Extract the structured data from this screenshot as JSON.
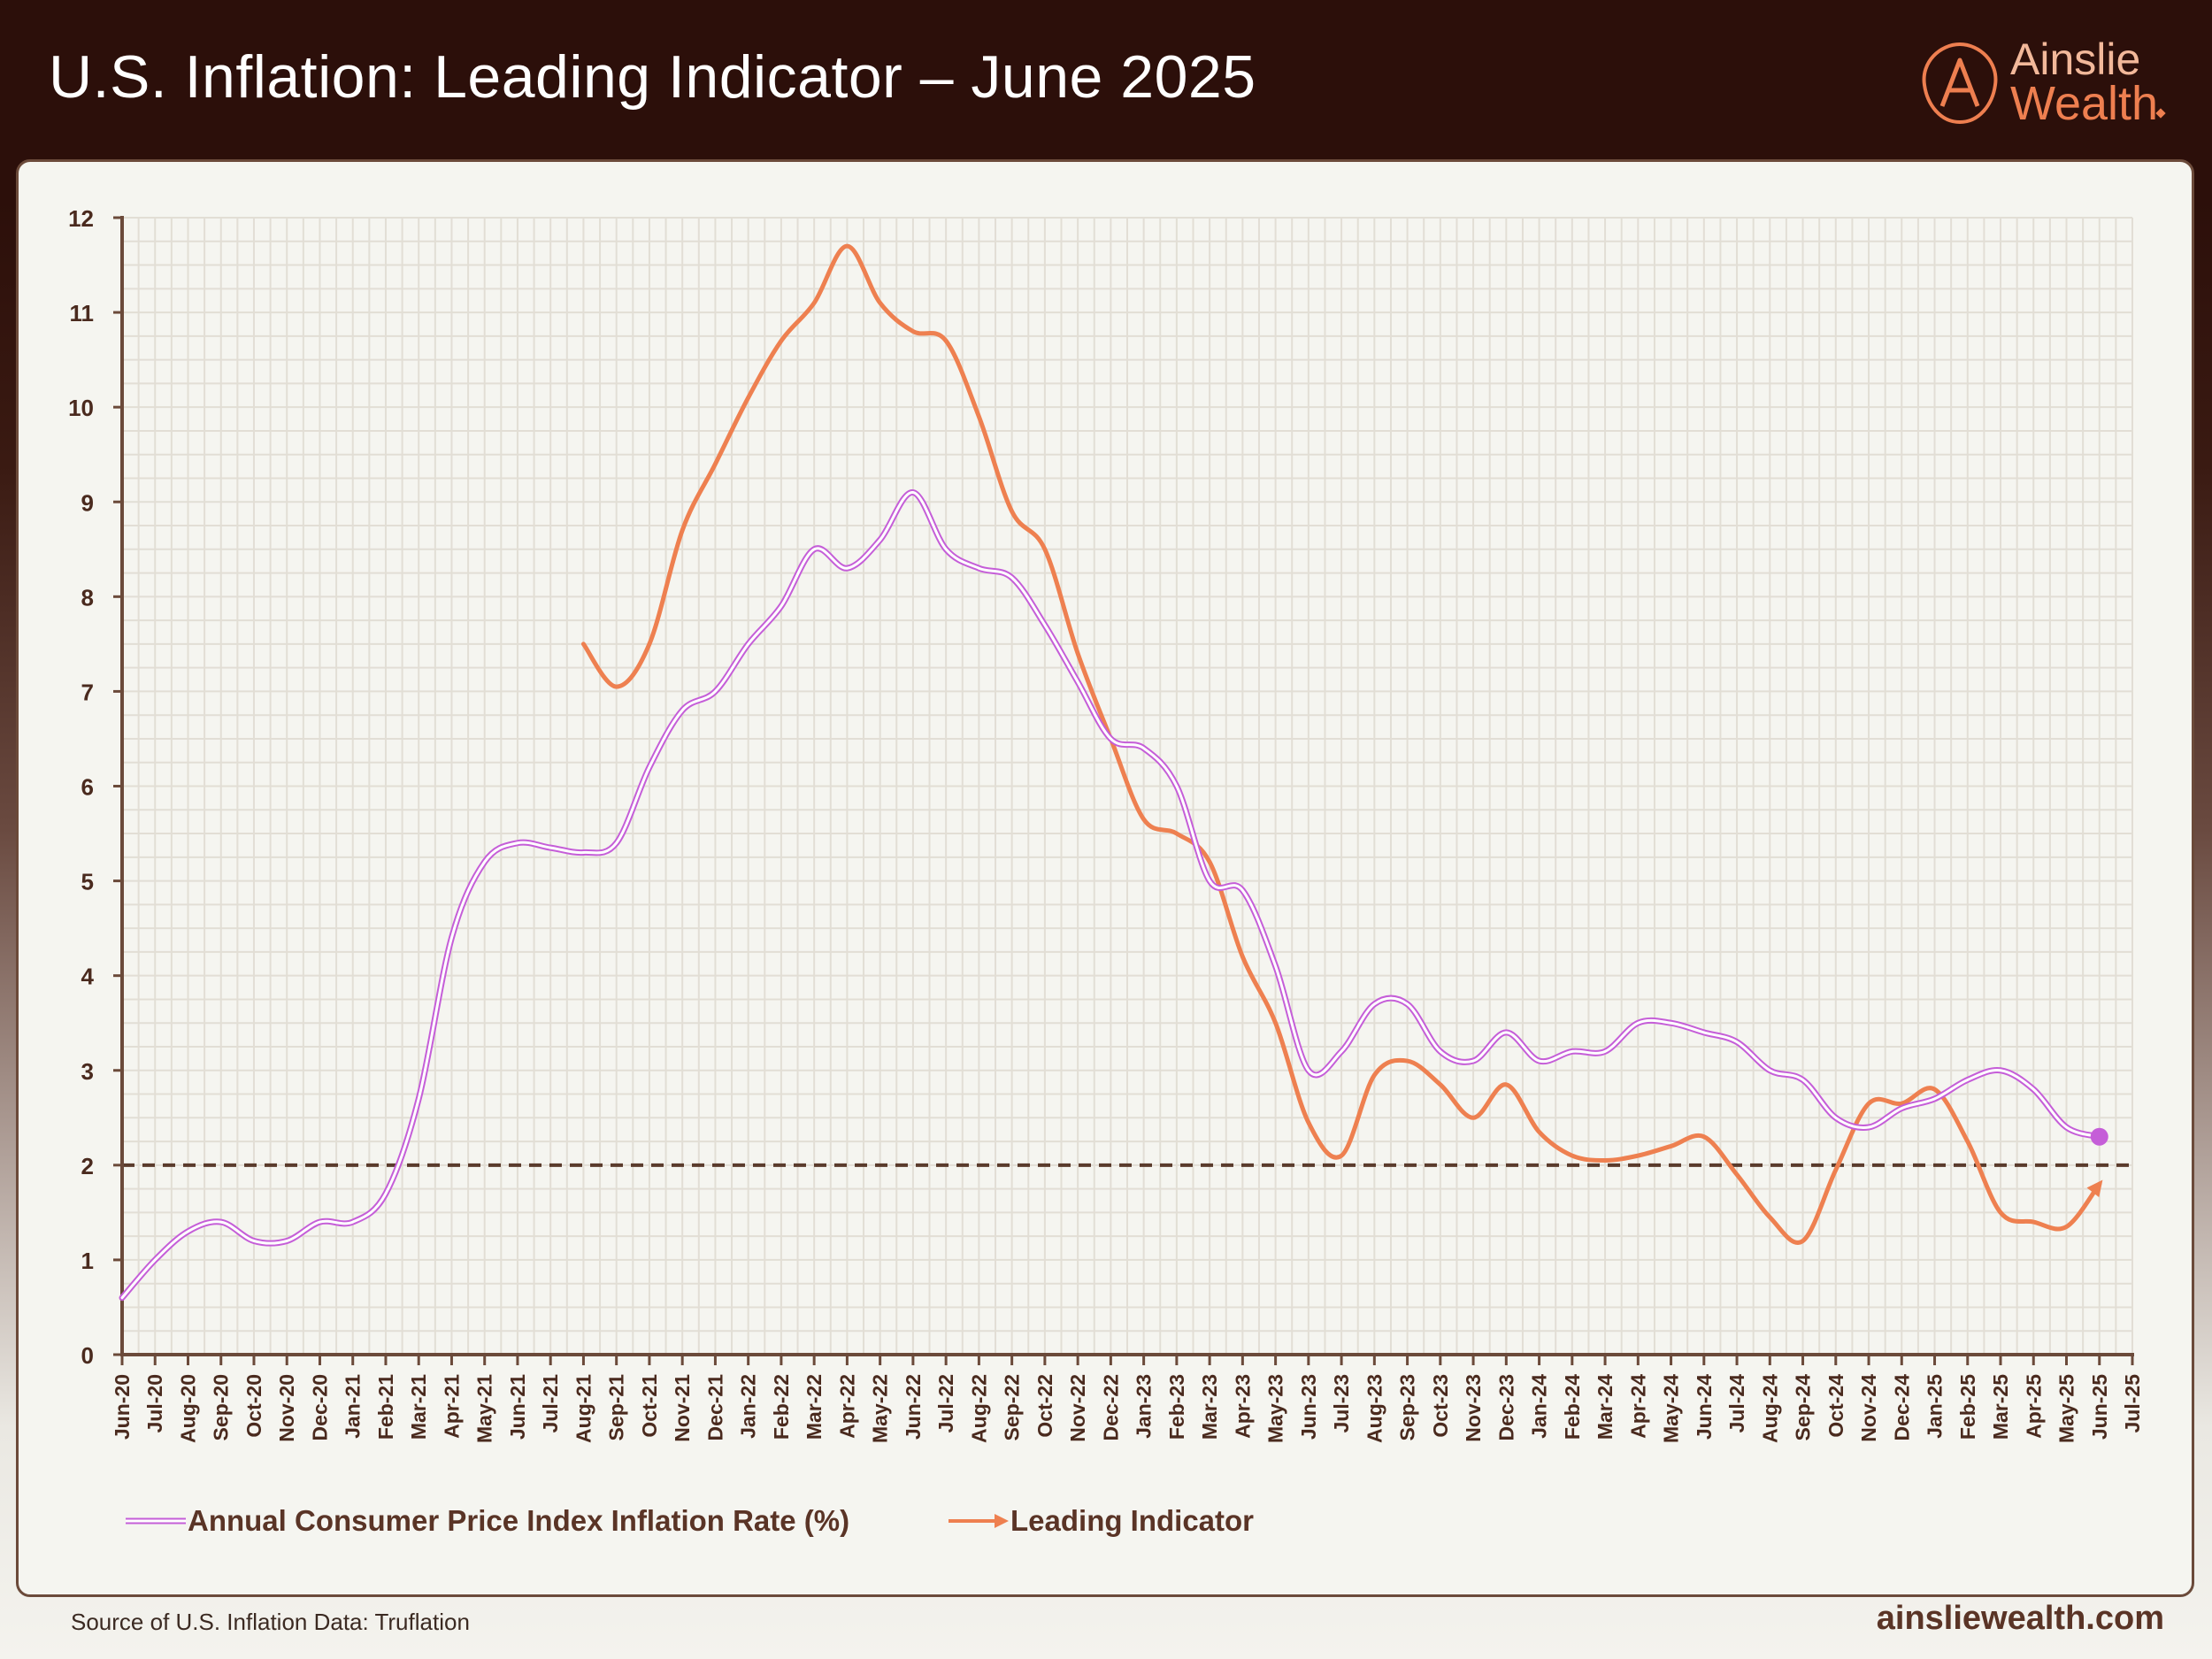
{
  "header": {
    "title": "U.S. Inflation: Leading Indicator – June 2025",
    "logo_line1": "Ainslie",
    "logo_line2": "Wealth"
  },
  "footer": {
    "source": "Source of U.S. Inflation Data: Truflation",
    "site": "ainsliewealth.com"
  },
  "colors": {
    "cpi": "#c55ed8",
    "leading": "#ee8050",
    "axis": "#6b4a3a",
    "grid": "#e2ded5",
    "reference_line": "#5a3b2c"
  },
  "chart_data": {
    "type": "line",
    "title": "",
    "xlabel": "",
    "ylabel": "",
    "ylim": [
      0,
      12
    ],
    "yticks": [
      "0",
      "1",
      "2",
      "3",
      "4",
      "5",
      "6",
      "7",
      "8",
      "9",
      "10",
      "11",
      "12"
    ],
    "grid": true,
    "legend_position": "bottom-left",
    "categories": [
      "Jun-20",
      "Jul-20",
      "Aug-20",
      "Sep-20",
      "Oct-20",
      "Nov-20",
      "Dec-20",
      "Jan-21",
      "Feb-21",
      "Mar-21",
      "Apr-21",
      "May-21",
      "Jun-21",
      "Jul-21",
      "Aug-21",
      "Sep-21",
      "Oct-21",
      "Nov-21",
      "Dec-21",
      "Jan-22",
      "Feb-22",
      "Mar-22",
      "Apr-22",
      "May-22",
      "Jun-22",
      "Jul-22",
      "Aug-22",
      "Sep-22",
      "Oct-22",
      "Nov-22",
      "Dec-22",
      "Jan-23",
      "Feb-23",
      "Mar-23",
      "Apr-23",
      "May-23",
      "Jun-23",
      "Jul-23",
      "Aug-23",
      "Sep-23",
      "Oct-23",
      "Nov-23",
      "Dec-23",
      "Jan-24",
      "Feb-24",
      "Mar-24",
      "Apr-24",
      "May-24",
      "Jun-24",
      "Jul-24",
      "Aug-24",
      "Sep-24",
      "Oct-24",
      "Nov-24",
      "Dec-24",
      "Jan-25",
      "Feb-25",
      "Mar-25",
      "Apr-25",
      "May-25",
      "Jun-25",
      "Jul-25"
    ],
    "reference_line": 2,
    "series": [
      {
        "name": "Annual Consumer Price Index Inflation Rate (%)",
        "style": "double-line",
        "end_marker": "dot",
        "values": [
          0.6,
          1.0,
          1.3,
          1.4,
          1.2,
          1.2,
          1.4,
          1.4,
          1.7,
          2.7,
          4.4,
          5.2,
          5.4,
          5.35,
          5.3,
          5.4,
          6.2,
          6.8,
          7.0,
          7.5,
          7.9,
          8.5,
          8.3,
          8.6,
          9.1,
          8.5,
          8.3,
          8.2,
          7.7,
          7.1,
          6.5,
          6.4,
          6.0,
          5.0,
          4.9,
          4.1,
          3.0,
          3.2,
          3.7,
          3.7,
          3.2,
          3.1,
          3.4,
          3.1,
          3.2,
          3.2,
          3.5,
          3.5,
          3.4,
          3.3,
          3.0,
          2.9,
          2.5,
          2.4,
          2.6,
          2.7,
          2.9,
          3.0,
          2.8,
          2.4,
          2.3,
          null
        ]
      },
      {
        "name": "Leading Indicator",
        "style": "line",
        "end_marker": "arrow",
        "values": [
          null,
          null,
          null,
          null,
          null,
          null,
          null,
          null,
          null,
          null,
          null,
          null,
          null,
          null,
          7.5,
          7.05,
          7.5,
          8.7,
          9.4,
          10.1,
          10.7,
          11.1,
          11.7,
          11.1,
          10.8,
          10.7,
          9.9,
          8.9,
          8.5,
          7.4,
          6.5,
          5.65,
          5.5,
          5.2,
          4.2,
          3.5,
          2.45,
          2.1,
          2.95,
          3.1,
          2.85,
          2.5,
          2.85,
          2.35,
          2.1,
          2.05,
          2.1,
          2.2,
          2.3,
          1.9,
          1.45,
          1.2,
          1.95,
          2.65,
          2.65,
          2.8,
          2.25,
          1.5,
          1.4,
          1.35,
          1.8,
          null
        ]
      }
    ]
  }
}
